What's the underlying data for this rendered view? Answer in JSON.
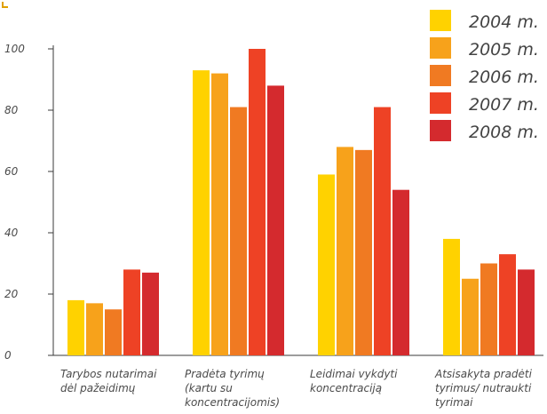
{
  "chart_data": {
    "type": "bar",
    "categories": [
      [
        "Tarybos nutarimai",
        "dėl pažeidimų"
      ],
      [
        "Pradėta tyrimų",
        "(kartu su",
        "koncentracijomis)"
      ],
      [
        "Leidimai vykdyti",
        "koncentraciją"
      ],
      [
        "Atsisakyta pradėti",
        "tyrimus/ nutraukti",
        "tyrimai"
      ]
    ],
    "series": [
      {
        "name": "2004 m.",
        "color": "#FFD200",
        "values": [
          18,
          93,
          59,
          38
        ]
      },
      {
        "name": "2005 m.",
        "color": "#F7A21B",
        "values": [
          17,
          92,
          68,
          25
        ]
      },
      {
        "name": "2006 m.",
        "color": "#F07A22",
        "values": [
          15,
          81,
          67,
          30
        ]
      },
      {
        "name": "2007 m.",
        "color": "#EE4225",
        "values": [
          28,
          100,
          81,
          33
        ]
      },
      {
        "name": "2008 m.",
        "color": "#D42A2E",
        "values": [
          27,
          88,
          54,
          28
        ]
      }
    ],
    "yticks": [
      0,
      20,
      40,
      60,
      80,
      100
    ],
    "ylim": [
      0,
      100
    ],
    "grid": false,
    "legend": "top-right",
    "title": "",
    "xlabel": "",
    "ylabel": ""
  }
}
